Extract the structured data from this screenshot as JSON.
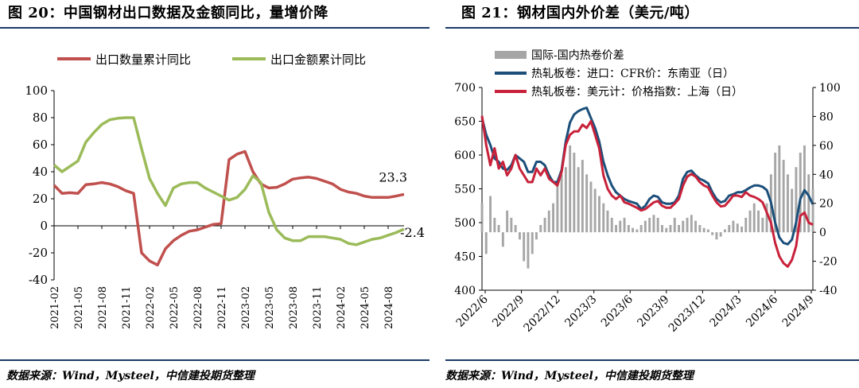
{
  "left_title": "图 20：中国钢材出口数据及金额同比，量增价降",
  "right_title": "图 21：钢材国内外价差（美元/吨）",
  "left_source": "数据来源：Wind，Mysteel，中信建投期货整理",
  "right_source": "数据来源：Wind，Mysteel，中信建投期货整理",
  "colors": {
    "red": "#c0504d",
    "green": "#9bbb59",
    "navy": "#1b4f7a",
    "crimson": "#c8213a",
    "gray": "#a6a6a6",
    "rule": "#1b3a66"
  },
  "chart_data": [
    {
      "type": "line",
      "categories": [
        "2021-02",
        "2021-03",
        "2021-04",
        "2021-05",
        "2021-06",
        "2021-07",
        "2021-08",
        "2021-09",
        "2021-10",
        "2021-11",
        "2021-12",
        "2022-01",
        "2022-02",
        "2022-03",
        "2022-04",
        "2022-05",
        "2022-06",
        "2022-07",
        "2022-08",
        "2022-09",
        "2022-10",
        "2022-11",
        "2022-12",
        "2023-01",
        "2023-02",
        "2023-03",
        "2023-04",
        "2023-05",
        "2023-06",
        "2023-07",
        "2023-08",
        "2023-09",
        "2023-10",
        "2023-11",
        "2023-12",
        "2024-01",
        "2024-02",
        "2024-03",
        "2024-04",
        "2024-05",
        "2024-06",
        "2024-07",
        "2024-08",
        "2024-09",
        "2024-10"
      ],
      "tick_labels": [
        "2021-02",
        "2021-05",
        "2021-08",
        "2021-11",
        "2022-02",
        "2022-05",
        "2022-08",
        "2022-11",
        "2023-02",
        "2023-05",
        "2023-08",
        "2023-11",
        "2024-02",
        "2024-05",
        "2024-08"
      ],
      "series": [
        {
          "name": "出口数量累计同比",
          "color": "#c0504d",
          "values": [
            30,
            24,
            24.5,
            24,
            30.5,
            31,
            32,
            31,
            29,
            26,
            24,
            -20,
            -26,
            -29,
            -17,
            -11,
            -7,
            -4,
            -3,
            -1,
            1,
            1.5,
            49,
            53,
            55,
            40,
            31,
            28,
            28.5,
            31,
            34.5,
            35.5,
            36,
            35,
            33,
            31,
            27,
            25,
            24,
            22,
            21,
            21,
            21,
            22,
            23.3
          ]
        },
        {
          "name": "出口金额累计同比",
          "color": "#9bbb59",
          "values": [
            45,
            40,
            44,
            48,
            62,
            69,
            75,
            78.5,
            79.5,
            80,
            80,
            57,
            35,
            24,
            15,
            28,
            31,
            32,
            32,
            28,
            25,
            22,
            19,
            21,
            27,
            37,
            32,
            10,
            -3,
            -9,
            -11,
            -11,
            -8,
            -8,
            -8,
            -9,
            -10,
            -13,
            -14,
            -12,
            -10,
            -9,
            -7,
            -5,
            -2.4
          ]
        }
      ],
      "annotations": [
        "23.3",
        "-2.4"
      ],
      "y_ticks": [
        "100",
        "80",
        "60",
        "40",
        "20",
        "0",
        "-20",
        "-40"
      ],
      "ylim": [
        -40,
        100
      ],
      "grid": false,
      "legend_position": "top"
    },
    {
      "type": "line",
      "tick_labels": [
        "2022/6",
        "2022/9",
        "2022/12",
        "2023/3",
        "2023/6",
        "2023/9",
        "2023/12",
        "2024/3",
        "2024/6",
        "2024/9"
      ],
      "legend": [
        {
          "name": "国际-国内热卷价差",
          "kind": "bar",
          "color": "#a6a6a6"
        },
        {
          "name": "热轧板卷：进口：CFR价：东南亚（日）",
          "kind": "line",
          "color": "#1b4f7a"
        },
        {
          "name": "热轧板卷：美元计：价格指数：上海（日）",
          "kind": "line",
          "color": "#c8213a"
        }
      ],
      "left_y_ticks": [
        "700",
        "650",
        "600",
        "550",
        "500",
        "450",
        "400"
      ],
      "right_y_ticks": [
        "100",
        "80",
        "60",
        "40",
        "20",
        "0",
        "-20",
        "-40"
      ],
      "ylim_left": [
        400,
        700
      ],
      "ylim_right": [
        -40,
        100
      ],
      "navy_values": [
        655,
        630,
        615,
        595,
        590,
        580,
        578,
        585,
        600,
        595,
        590,
        575,
        575,
        590,
        590,
        585,
        570,
        560,
        560,
        578,
        620,
        648,
        660,
        665,
        668,
        670,
        655,
        640,
        620,
        590,
        570,
        555,
        545,
        540,
        535,
        532,
        530,
        528,
        520,
        525,
        535,
        540,
        538,
        530,
        528,
        528,
        530,
        540,
        565,
        575,
        577,
        570,
        565,
        562,
        558,
        545,
        535,
        530,
        532,
        540,
        542,
        545,
        545,
        548,
        552,
        555,
        555,
        553,
        548,
        530,
        500,
        478,
        470,
        468,
        475,
        500,
        535,
        548,
        540,
        527
      ],
      "crimson_values": [
        658,
        615,
        585,
        610,
        580,
        590,
        570,
        580,
        600,
        580,
        570,
        560,
        560,
        580,
        570,
        580,
        565,
        560,
        555,
        575,
        615,
        630,
        635,
        635,
        645,
        640,
        650,
        630,
        610,
        570,
        550,
        540,
        535,
        540,
        530,
        528,
        525,
        522,
        518,
        520,
        525,
        530,
        532,
        525,
        522,
        522,
        528,
        535,
        555,
        568,
        572,
        568,
        560,
        555,
        552,
        540,
        530,
        524,
        525,
        532,
        540,
        540,
        538,
        545,
        540,
        538,
        535,
        530,
        515,
        500,
        470,
        450,
        440,
        435,
        445,
        465,
        510,
        515,
        500,
        497
      ],
      "gray_values": [
        20,
        -15,
        25,
        10,
        5,
        -10,
        15,
        10,
        5,
        -5,
        -20,
        -25,
        -15,
        -5,
        5,
        10,
        15,
        20,
        35,
        40,
        45,
        60,
        55,
        45,
        50,
        40,
        35,
        30,
        25,
        20,
        15,
        10,
        5,
        8,
        10,
        5,
        3,
        2,
        5,
        8,
        10,
        12,
        10,
        5,
        3,
        5,
        10,
        5,
        8,
        10,
        12,
        8,
        5,
        3,
        2,
        -2,
        -5,
        -3,
        2,
        5,
        8,
        6,
        4,
        10,
        15,
        20,
        15,
        10,
        20,
        40,
        55,
        60,
        50,
        40,
        30,
        45,
        55,
        60,
        40,
        30
      ]
    }
  ]
}
